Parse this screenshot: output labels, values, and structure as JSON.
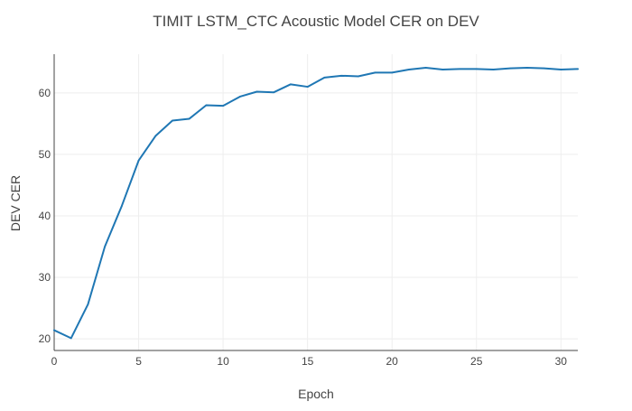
{
  "chart_data": {
    "type": "line",
    "title": "TIMIT LSTM_CTC Acoustic Model CER on DEV",
    "xlabel": "Epoch",
    "ylabel": "DEV CER",
    "xlim": [
      0,
      31
    ],
    "ylim": [
      18.1,
      66.3
    ],
    "xticks": [
      0,
      5,
      10,
      15,
      20,
      25,
      30
    ],
    "yticks": [
      20,
      30,
      40,
      50,
      60
    ],
    "grid": true,
    "legend": "none",
    "series": [
      {
        "color": "#1f77b4",
        "x": [
          0,
          1,
          2,
          3,
          4,
          5,
          6,
          7,
          8,
          9,
          10,
          11,
          12,
          13,
          14,
          15,
          16,
          17,
          18,
          19,
          20,
          21,
          22,
          23,
          24,
          25,
          26,
          27,
          28,
          29,
          30,
          31
        ],
        "y": [
          21.4,
          20.1,
          25.6,
          35.0,
          41.6,
          49.0,
          53.0,
          55.5,
          55.8,
          58.0,
          57.9,
          59.4,
          60.2,
          60.1,
          61.4,
          61.0,
          62.5,
          62.8,
          62.7,
          63.3,
          63.3,
          63.8,
          64.1,
          63.8,
          63.9,
          63.9,
          63.8,
          64.0,
          64.1,
          64.0,
          63.8,
          63.9
        ]
      }
    ]
  }
}
